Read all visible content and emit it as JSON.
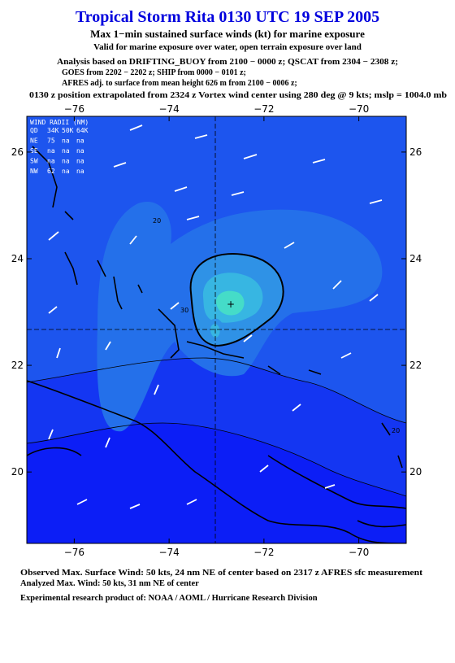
{
  "header": {
    "title": "Tropical Storm Rita 0130 UTC 19 SEP 2005",
    "subtitle": "Max 1−min sustained surface winds (kt) for marine exposure",
    "lines": [
      "Valid for marine exposure over water, open terrain exposure over land",
      "Analysis based on  DRIFTING_BUOY from 2100 − 0000 z;  QSCAT from 2304 − 2308 z;",
      "GOES from 2202 − 2202 z;  SHIP from 0000 − 0101 z;",
      "AFRES adj. to surface from mean height 626 m from 2100 − 0006 z;",
      "0130 z position extrapolated from 2324 z Vortex wind center using 280 deg @ 9 kts; mslp = 1004.0 mb"
    ]
  },
  "map": {
    "xlim": [
      -77,
      -69
    ],
    "ylim": [
      18.66,
      26.67
    ],
    "xticks": [
      {
        "value": -76,
        "label": "−76"
      },
      {
        "value": -74,
        "label": "−74"
      },
      {
        "value": -72,
        "label": "−72"
      },
      {
        "value": -70,
        "label": "−70"
      }
    ],
    "yticks": [
      26,
      24,
      22,
      20
    ],
    "wind_radii": {
      "title": "WIND RADII (NM)",
      "rows": [
        [
          "QD",
          "34K",
          "50K",
          "64K"
        ],
        [
          "NE",
          "75",
          "na",
          "na"
        ],
        [
          "SE",
          "na",
          "na",
          "na"
        ],
        [
          "SW",
          "na",
          "na",
          "na"
        ],
        [
          "NW",
          "62",
          "na",
          "na"
        ]
      ]
    },
    "contour_labels": [
      20,
      20,
      30
    ]
  },
  "footer": {
    "lines": [
      "Observed Max. Surface Wind: 50 kts, 24 nm NE of center based on 2317 z AFRES sfc measurement",
      "Analyzed Max. Wind: 50 kts, 31 nm NE of center",
      "Experimental research product of:  NOAA / AOML / Hurricane Research Division"
    ]
  }
}
